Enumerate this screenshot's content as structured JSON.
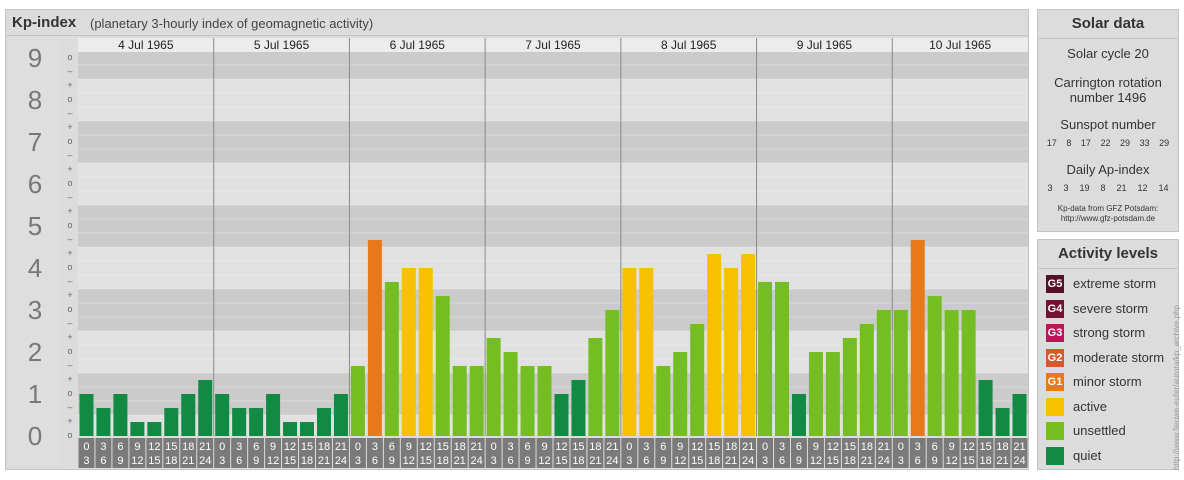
{
  "header": {
    "title": "Kp-index",
    "subtitle": "(planetary 3-hourly index of geomagnetic activity)"
  },
  "chart_data": {
    "type": "bar",
    "title": "Kp-index",
    "subtitle": "(planetary 3-hourly index of geomagnetic activity)",
    "ylim": [
      0,
      9
    ],
    "y_ticks": [
      "0",
      "1",
      "2",
      "3",
      "4",
      "5",
      "6",
      "7",
      "8",
      "9"
    ],
    "y_minor_ticks": [
      "o",
      "+",
      "–"
    ],
    "days": [
      "4 Jul 1965",
      "5 Jul 1965",
      "6 Jul 1965",
      "7 Jul 1965",
      "8 Jul 1965",
      "9 Jul 1965",
      "10 Jul 1965"
    ],
    "intervals": [
      [
        "0",
        "3"
      ],
      [
        "3",
        "6"
      ],
      [
        "6",
        "9"
      ],
      [
        "9",
        "12"
      ],
      [
        "12",
        "15"
      ],
      [
        "15",
        "18"
      ],
      [
        "18",
        "21"
      ],
      [
        "21",
        "24"
      ]
    ],
    "values": [
      1.0,
      0.667,
      1.0,
      0.333,
      0.333,
      0.667,
      1.0,
      1.333,
      1.0,
      0.667,
      0.667,
      1.0,
      0.333,
      0.333,
      0.667,
      1.0,
      1.667,
      4.667,
      3.667,
      4.0,
      4.0,
      3.333,
      1.667,
      1.667,
      2.333,
      2.0,
      1.667,
      1.667,
      1.0,
      1.333,
      2.333,
      3.0,
      4.0,
      4.0,
      1.667,
      2.0,
      2.667,
      4.333,
      4.0,
      4.333,
      3.667,
      3.667,
      1.0,
      2.0,
      2.0,
      2.333,
      2.667,
      3.0,
      3.0,
      4.667,
      3.333,
      3.0,
      3.0,
      1.333,
      0.667,
      1.0
    ],
    "color_thresholds": {
      "quiet": "<2",
      "unsettled": "<4",
      "active": "<4.5",
      "minor storm": ">=4.5"
    },
    "colors": {
      "quiet": "#118a44",
      "unsettled": "#74be23",
      "active": "#f7c100",
      "minor_storm": "#e8791b",
      "moderate_storm": "#d9582b",
      "strong_storm": "#b51a58",
      "severe_storm": "#771133",
      "extreme_storm": "#55102a",
      "band_dark": "#cbcbcb",
      "band_light": "#e1e1e1",
      "xlabel_box": "#7a7a7a"
    }
  },
  "solar": {
    "heading": "Solar data",
    "cycle": "Solar cycle 20",
    "carrington_line1": "Carrington rotation",
    "carrington_line2": "number 1496",
    "sunspot_label": "Sunspot number",
    "sunspot_values": [
      "17",
      "8",
      "17",
      "22",
      "29",
      "33",
      "29"
    ],
    "ap_label": "Daily Ap-index",
    "ap_values": [
      "3",
      "3",
      "19",
      "8",
      "21",
      "12",
      "14"
    ],
    "source_line1": "Kp-data from GFZ Potsdam:",
    "source_line2": "http://www.gfz-potsdam.de"
  },
  "activity": {
    "heading": "Activity levels",
    "levels": [
      {
        "code": "G5",
        "label": "extreme storm",
        "color": "#55102a"
      },
      {
        "code": "G4",
        "label": "severe storm",
        "color": "#771133"
      },
      {
        "code": "G3",
        "label": "strong storm",
        "color": "#b51a58"
      },
      {
        "code": "G2",
        "label": "moderate storm",
        "color": "#d9582b"
      },
      {
        "code": "G1",
        "label": "minor storm",
        "color": "#e8791b"
      },
      {
        "code": "",
        "label": "active",
        "color": "#f7c100"
      },
      {
        "code": "",
        "label": "unsettled",
        "color": "#74be23"
      },
      {
        "code": "",
        "label": "quiet",
        "color": "#118a44"
      }
    ]
  },
  "credit": "http://www.fieuwe-eufer/aurora/kp_archive.php"
}
